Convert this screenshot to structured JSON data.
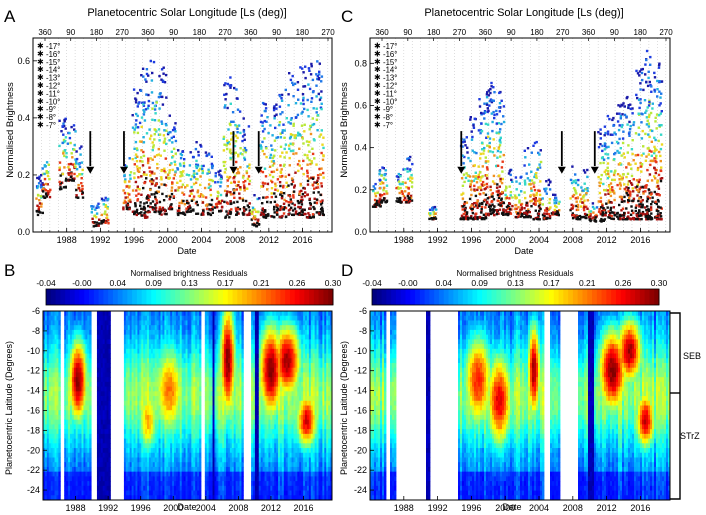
{
  "figure": {
    "panel_labels": [
      "A",
      "B",
      "C",
      "D"
    ],
    "region_labels": [
      "SEB",
      "STrZ"
    ]
  },
  "chart_data": [
    {
      "panel": "A",
      "type": "scatter",
      "title": "Planetocentric Solar Longitude [Ls (deg)]",
      "top_axis_ticks": [
        "360",
        "90",
        "180",
        "270",
        "360",
        "90",
        "180",
        "270",
        "360",
        "90",
        "180",
        "270"
      ],
      "xlabel": "Date",
      "ylabel": "Normalised Brightness",
      "x_ticks": [
        1988,
        1992,
        1996,
        2000,
        2004,
        2008,
        2012,
        2016
      ],
      "xlim": [
        1984.0,
        2019.5
      ],
      "y_ticks": [
        "0.0",
        "0.2",
        "0.4",
        "0.6"
      ],
      "ylim": [
        0.0,
        0.68
      ],
      "legend_placement": "top-left",
      "series_labels": [
        "-17°",
        "-16°",
        "-15°",
        "-14°",
        "-13°",
        "-12°",
        "-11°",
        "-10°",
        "-9°",
        "-8°",
        "-7°"
      ],
      "series_colors": [
        "#1a1aa8",
        "#1e3ce0",
        "#1f78e8",
        "#22b0e0",
        "#36d8c8",
        "#b8e838",
        "#ecd820",
        "#f09020",
        "#e83818",
        "#a81010",
        "#101010"
      ],
      "arrows_at": [
        1990.8,
        1994.8,
        2007.8,
        2010.8
      ],
      "clusters": [
        {
          "x": 1984.8,
          "hi": 0.2,
          "lo": 0.06
        },
        {
          "x": 1985.6,
          "hi": 0.28,
          "lo": 0.12
        },
        {
          "x": 1987.6,
          "hi": 0.4,
          "lo": 0.15
        },
        {
          "x": 1988.6,
          "hi": 0.38,
          "lo": 0.18
        },
        {
          "x": 1989.5,
          "hi": 0.3,
          "lo": 0.12
        },
        {
          "x": 1991.4,
          "hi": 0.1,
          "lo": 0.02
        },
        {
          "x": 1992.6,
          "hi": 0.13,
          "lo": 0.03
        },
        {
          "x": 1995.2,
          "hi": 0.28,
          "lo": 0.08
        },
        {
          "x": 1996.3,
          "hi": 0.52,
          "lo": 0.06
        },
        {
          "x": 1997.3,
          "hi": 0.6,
          "lo": 0.05
        },
        {
          "x": 1998.3,
          "hi": 0.6,
          "lo": 0.07
        },
        {
          "x": 1999.4,
          "hi": 0.58,
          "lo": 0.06
        },
        {
          "x": 2000.5,
          "hi": 0.42,
          "lo": 0.08
        },
        {
          "x": 2001.6,
          "hi": 0.33,
          "lo": 0.06
        },
        {
          "x": 2002.7,
          "hi": 0.28,
          "lo": 0.07
        },
        {
          "x": 2003.8,
          "hi": 0.32,
          "lo": 0.06
        },
        {
          "x": 2004.9,
          "hi": 0.28,
          "lo": 0.06
        },
        {
          "x": 2006.0,
          "hi": 0.22,
          "lo": 0.07
        },
        {
          "x": 2007.1,
          "hi": 0.55,
          "lo": 0.05
        },
        {
          "x": 2008.2,
          "hi": 0.52,
          "lo": 0.06
        },
        {
          "x": 2009.3,
          "hi": 0.4,
          "lo": 0.06
        },
        {
          "x": 2010.4,
          "hi": 0.14,
          "lo": 0.02
        },
        {
          "x": 2011.5,
          "hi": 0.48,
          "lo": 0.05
        },
        {
          "x": 2012.6,
          "hi": 0.45,
          "lo": 0.05
        },
        {
          "x": 2013.7,
          "hi": 0.52,
          "lo": 0.05
        },
        {
          "x": 2014.8,
          "hi": 0.56,
          "lo": 0.06
        },
        {
          "x": 2015.9,
          "hi": 0.58,
          "lo": 0.06
        },
        {
          "x": 2017.0,
          "hi": 0.62,
          "lo": 0.05
        },
        {
          "x": 2018.1,
          "hi": 0.6,
          "lo": 0.06
        }
      ]
    },
    {
      "panel": "C",
      "type": "scatter",
      "title": "Planetocentric Solar Longitude [Ls (deg)]",
      "top_axis_ticks": [
        "360",
        "90",
        "180",
        "270",
        "360",
        "90",
        "180",
        "270",
        "360",
        "90",
        "180",
        "270"
      ],
      "xlabel": "Date",
      "ylabel": "Normalised Brightness",
      "x_ticks": [
        1988,
        1992,
        1996,
        2000,
        2004,
        2008,
        2012,
        2016
      ],
      "xlim": [
        1984.0,
        2019.5
      ],
      "y_ticks": [
        "0.0",
        "0.2",
        "0.4",
        "0.6",
        "0.8"
      ],
      "ylim": [
        0.0,
        0.92
      ],
      "legend_placement": "top-left",
      "series_labels": [
        "-17°",
        "-16°",
        "-15°",
        "-14°",
        "-13°",
        "-12°",
        "-11°",
        "-10°",
        "-9°",
        "-8°",
        "-7°"
      ],
      "series_colors": [
        "#1a1aa8",
        "#1e3ce0",
        "#1f78e8",
        "#22b0e0",
        "#36d8c8",
        "#b8e838",
        "#ecd820",
        "#f09020",
        "#e83818",
        "#a81010",
        "#101010"
      ],
      "arrows_at": [
        1994.8,
        2006.7,
        2010.6
      ],
      "clusters": [
        {
          "x": 1984.8,
          "hi": 0.25,
          "lo": 0.12
        },
        {
          "x": 1985.6,
          "hi": 0.32,
          "lo": 0.14
        },
        {
          "x": 1987.6,
          "hi": 0.3,
          "lo": 0.14
        },
        {
          "x": 1988.6,
          "hi": 0.36,
          "lo": 0.14
        },
        {
          "x": 1991.4,
          "hi": 0.12,
          "lo": 0.06
        },
        {
          "x": 1995.2,
          "hi": 0.45,
          "lo": 0.06
        },
        {
          "x": 1996.3,
          "hi": 0.55,
          "lo": 0.06
        },
        {
          "x": 1997.3,
          "hi": 0.64,
          "lo": 0.06
        },
        {
          "x": 1998.3,
          "hi": 0.72,
          "lo": 0.08
        },
        {
          "x": 1999.4,
          "hi": 0.68,
          "lo": 0.08
        },
        {
          "x": 2000.5,
          "hi": 0.3,
          "lo": 0.08
        },
        {
          "x": 2001.6,
          "hi": 0.28,
          "lo": 0.07
        },
        {
          "x": 2002.7,
          "hi": 0.4,
          "lo": 0.07
        },
        {
          "x": 2003.8,
          "hi": 0.45,
          "lo": 0.06
        },
        {
          "x": 2004.9,
          "hi": 0.25,
          "lo": 0.06
        },
        {
          "x": 2006.0,
          "hi": 0.18,
          "lo": 0.08
        },
        {
          "x": 2008.2,
          "hi": 0.32,
          "lo": 0.06
        },
        {
          "x": 2009.3,
          "hi": 0.3,
          "lo": 0.06
        },
        {
          "x": 2010.4,
          "hi": 0.14,
          "lo": 0.05
        },
        {
          "x": 2011.5,
          "hi": 0.5,
          "lo": 0.05
        },
        {
          "x": 2012.6,
          "hi": 0.55,
          "lo": 0.06
        },
        {
          "x": 2013.7,
          "hi": 0.62,
          "lo": 0.06
        },
        {
          "x": 2014.8,
          "hi": 0.66,
          "lo": 0.06
        },
        {
          "x": 2015.9,
          "hi": 0.78,
          "lo": 0.06
        },
        {
          "x": 2017.0,
          "hi": 0.86,
          "lo": 0.06
        },
        {
          "x": 2018.1,
          "hi": 0.82,
          "lo": 0.06
        }
      ]
    },
    {
      "panel": "B",
      "type": "heatmap",
      "colorbar_title": "Normalised brightness Residuals",
      "colorbar_ticks": [
        "-0.04",
        "-0.00",
        "0.04",
        "0.09",
        "0.13",
        "0.17",
        "0.21",
        "0.26",
        "0.30"
      ],
      "clim": [
        -0.04,
        0.3
      ],
      "xlabel": "Date",
      "ylabel": "Planetocentric Latitude (Degrees)",
      "x_ticks": [
        1988,
        1992,
        1996,
        2000,
        2004,
        2008,
        2012,
        2016
      ],
      "xlim": [
        1984.0,
        2019.5
      ],
      "y_ticks": [
        -6,
        -8,
        -10,
        -12,
        -14,
        -16,
        -18,
        -20,
        -22,
        -24
      ],
      "ylim": [
        -25,
        -6
      ],
      "gaps": [
        [
          1986.2,
          1986.7
        ],
        [
          1990.0,
          1990.6
        ],
        [
          1992.2,
          1994.0
        ],
        [
          2003.5,
          2003.8
        ],
        [
          2008.6,
          2009.6
        ]
      ],
      "low_bands": [
        [
          1990.6,
          1992.2
        ],
        [
          2004.8,
          2005.1
        ],
        [
          2010.1,
          2010.6
        ]
      ],
      "hot_spots": [
        {
          "x": 1988.3,
          "lat": -13,
          "w": 1.2,
          "h": 4.5,
          "v": 0.3
        },
        {
          "x": 1996.9,
          "lat": -17,
          "w": 1.3,
          "h": 3.5,
          "v": 0.2
        },
        {
          "x": 1999.5,
          "lat": -14,
          "w": 2.0,
          "h": 5.0,
          "v": 0.22
        },
        {
          "x": 2006.7,
          "lat": -11,
          "w": 1.0,
          "h": 6.0,
          "v": 0.3
        },
        {
          "x": 2012.0,
          "lat": -12,
          "w": 1.6,
          "h": 5.0,
          "v": 0.3
        },
        {
          "x": 2014.0,
          "lat": -11,
          "w": 1.8,
          "h": 4.0,
          "v": 0.29
        },
        {
          "x": 2016.4,
          "lat": -17,
          "w": 1.4,
          "h": 3.0,
          "v": 0.27
        }
      ]
    },
    {
      "panel": "D",
      "type": "heatmap",
      "colorbar_title": "Normalised brightness Residuals",
      "colorbar_ticks": [
        "-0.04",
        "-0.00",
        "0.04",
        "0.09",
        "0.13",
        "0.17",
        "0.21",
        "0.26",
        "0.30"
      ],
      "clim": [
        -0.04,
        0.3
      ],
      "xlabel": "Date",
      "ylabel": "Planetocentric Latitude (Degrees)",
      "x_ticks": [
        1988,
        1992,
        1996,
        2000,
        2004,
        2008,
        2012,
        2016
      ],
      "xlim": [
        1984.0,
        2019.5
      ],
      "y_ticks": [
        -6,
        -8,
        -10,
        -12,
        -14,
        -16,
        -18,
        -20,
        -22,
        -24
      ],
      "ylim": [
        -25,
        -6
      ],
      "gaps": [
        [
          1985.9,
          1986.4
        ],
        [
          1987.1,
          1990.6
        ],
        [
          1991.0,
          1994.4
        ],
        [
          2004.6,
          2005.4
        ],
        [
          2006.6,
          2008.6
        ]
      ],
      "low_bands": [
        [
          1990.6,
          1991.0
        ],
        [
          2009.9,
          2010.5
        ]
      ],
      "hot_spots": [
        {
          "x": 1996.8,
          "lat": -13,
          "w": 1.8,
          "h": 5.0,
          "v": 0.25
        },
        {
          "x": 1999.3,
          "lat": -15,
          "w": 1.6,
          "h": 5.0,
          "v": 0.27
        },
        {
          "x": 2003.4,
          "lat": -12,
          "w": 0.8,
          "h": 5.0,
          "v": 0.29
        },
        {
          "x": 2012.7,
          "lat": -12,
          "w": 1.8,
          "h": 4.5,
          "v": 0.3
        },
        {
          "x": 2014.7,
          "lat": -10,
          "w": 1.6,
          "h": 3.5,
          "v": 0.29
        },
        {
          "x": 2016.6,
          "lat": -17,
          "w": 1.2,
          "h": 3.0,
          "v": 0.28
        }
      ]
    }
  ]
}
